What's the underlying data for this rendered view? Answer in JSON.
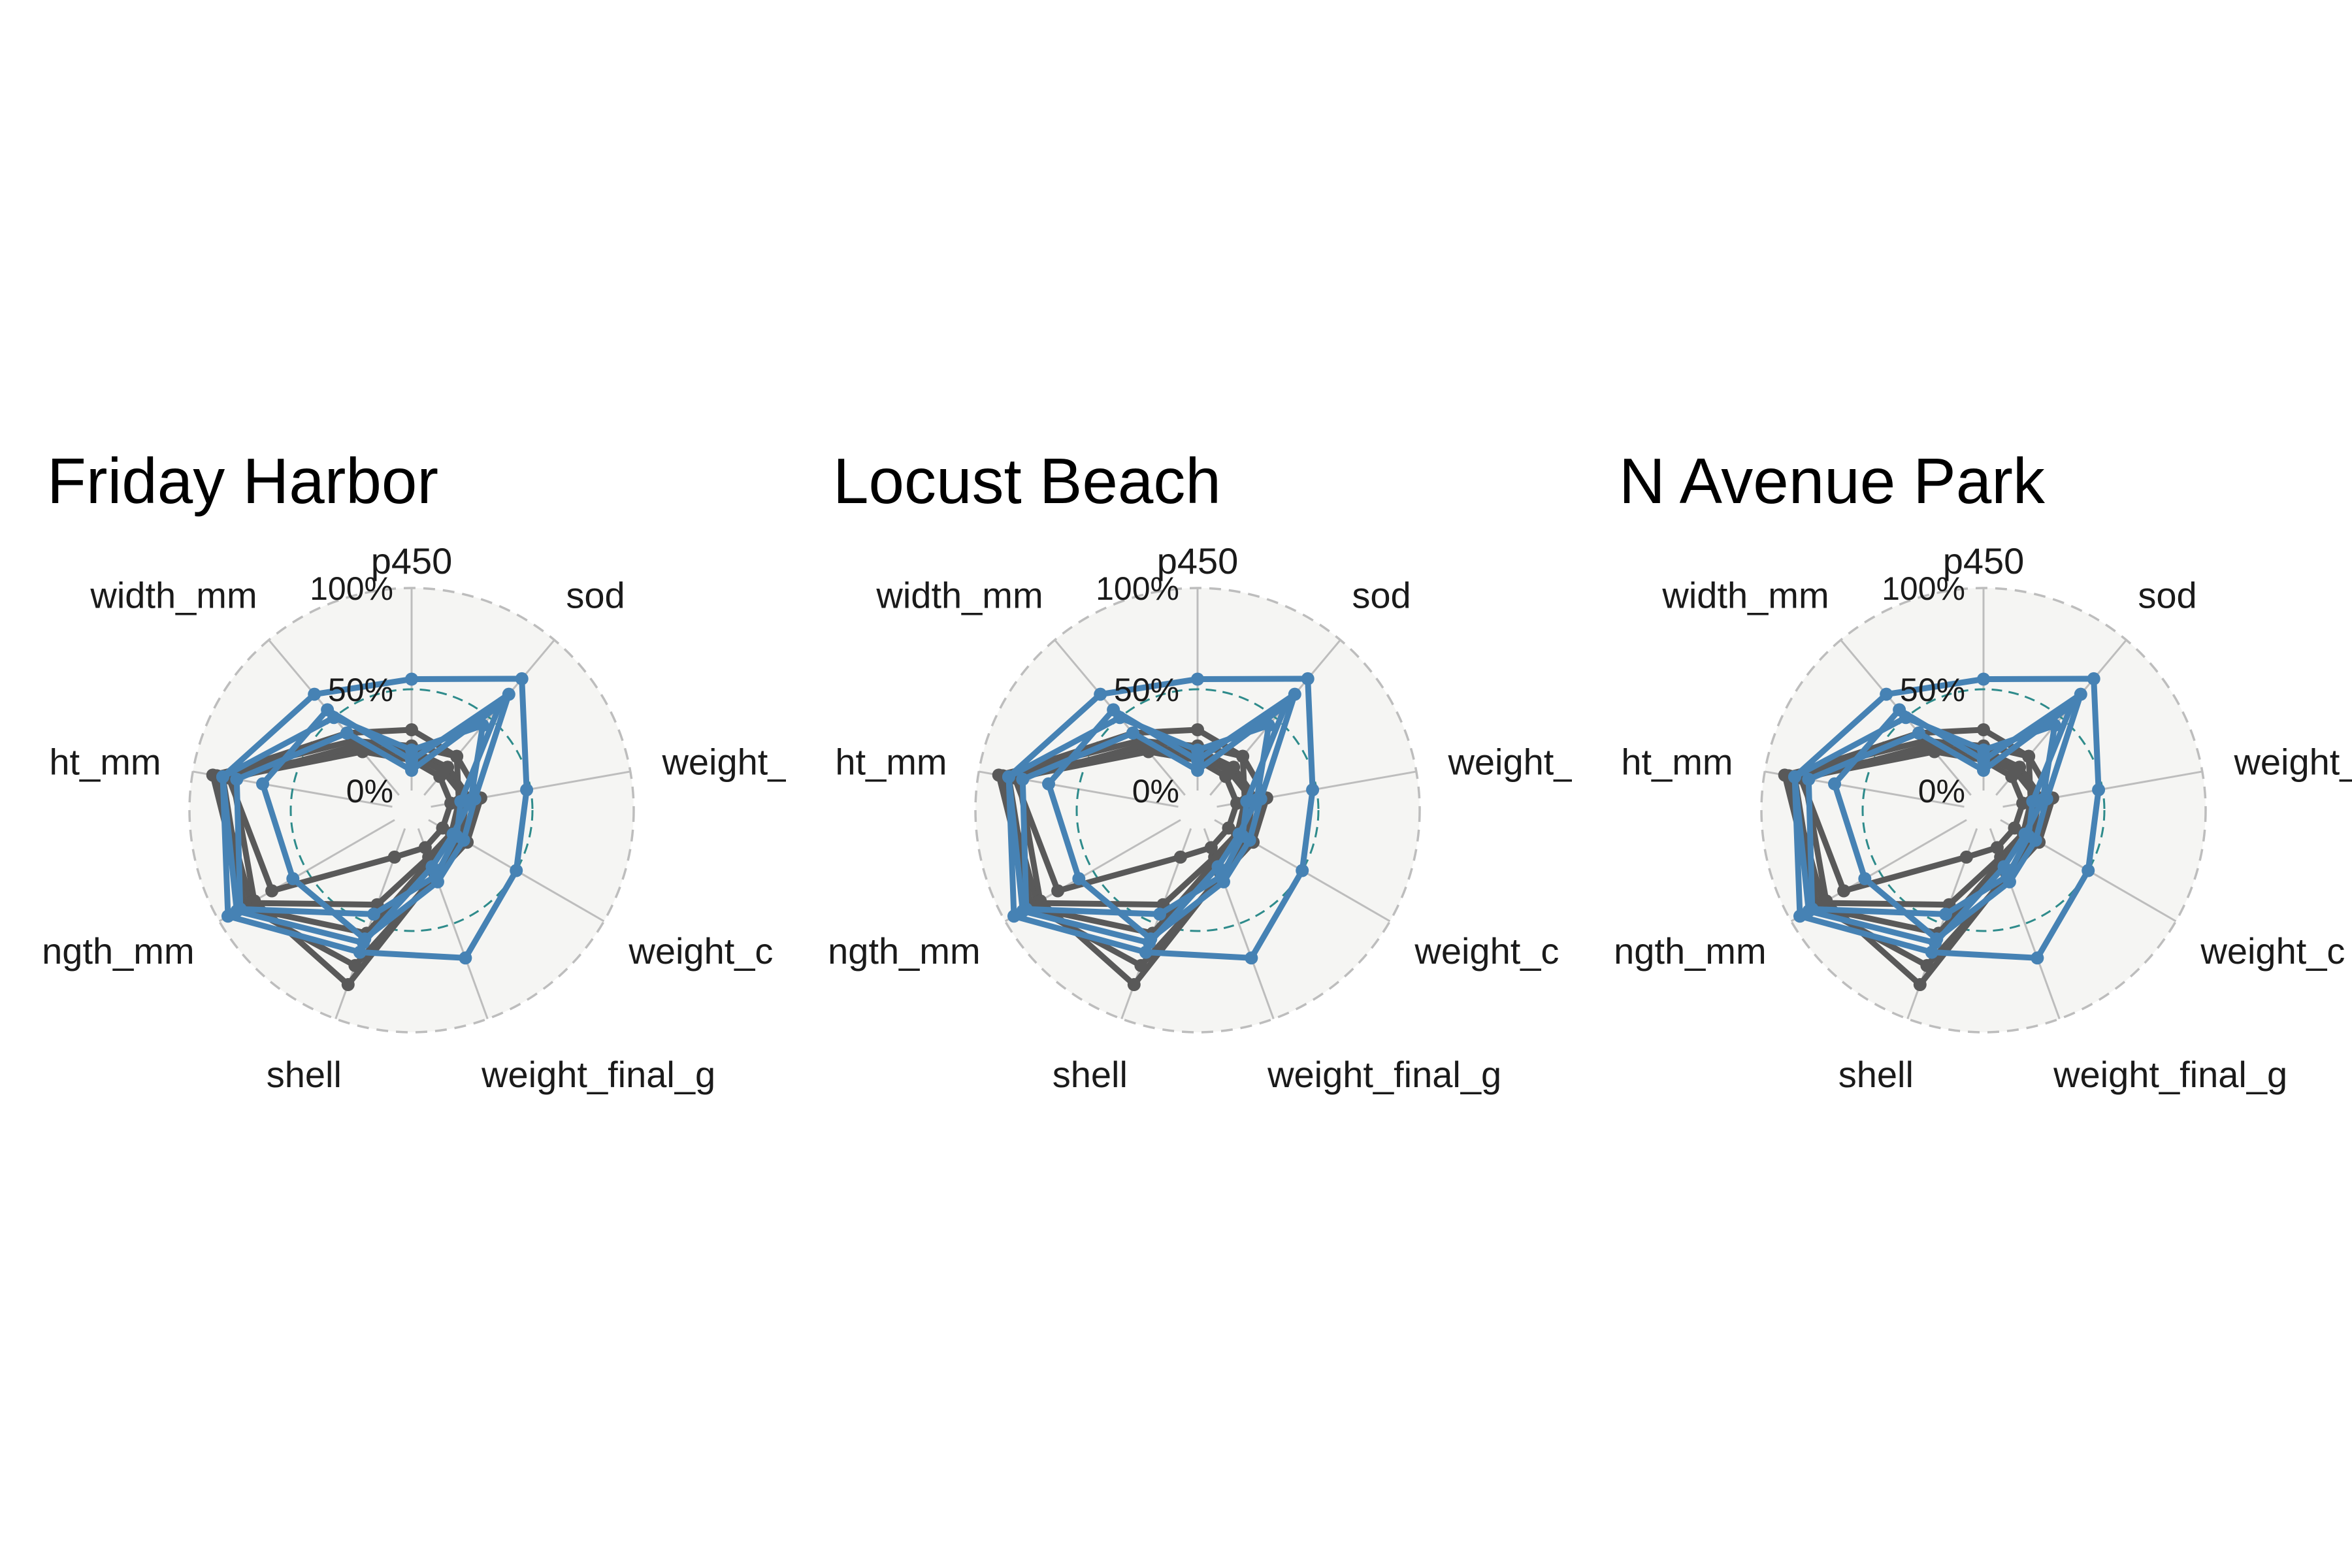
{
  "chart_data": [
    {
      "type": "radar",
      "title": "Friday Harbor",
      "axes": [
        "p450",
        "sod",
        "weight_initial_g",
        "weight_change_g",
        "weight_final_g",
        "shell",
        "length_mm",
        "height_mm",
        "width_mm"
      ],
      "axis_labels": [
        "p450",
        "sod",
        "weight_",
        "weight_c",
        "weight_final_g",
        "shell",
        "ngth_mm",
        "ht_mm",
        "width_mm"
      ],
      "radial_range": [
        0,
        100
      ],
      "radial_ticks": [
        "0%",
        "50%",
        "100%"
      ],
      "reference_ring": 50,
      "series": [
        {
          "group": "grey",
          "values": [
            30,
            25,
            14,
            13,
            15,
            40,
            82,
            88,
            40
          ]
        },
        {
          "group": "grey",
          "values": [
            20,
            18,
            20,
            14,
            17,
            55,
            86,
            85,
            30
          ]
        },
        {
          "group": "grey",
          "values": [
            18,
            15,
            18,
            18,
            24,
            82,
            80,
            80,
            32
          ]
        },
        {
          "group": "grey",
          "values": [
            22,
            25,
            25,
            22,
            25,
            72,
            85,
            90,
            35
          ]
        },
        {
          "group": "grey",
          "values": [
            15,
            12,
            10,
            8,
            10,
            15,
            70,
            82,
            28
          ]
        },
        {
          "group": "blue",
          "values": [
            55,
            75,
            48,
            50,
            68,
            65,
            95,
            85,
            65
          ]
        },
        {
          "group": "blue",
          "values": [
            15,
            65,
            22,
            20,
            28,
            58,
            58,
            65,
            55
          ]
        },
        {
          "group": "blue",
          "values": [
            10,
            58,
            15,
            16,
            25,
            45,
            88,
            78,
            40
          ]
        },
        {
          "group": "blue",
          "values": [
            20,
            45,
            20,
            14,
            20,
            60,
            90,
            85,
            50
          ]
        }
      ],
      "colors": {
        "grey": "#595959",
        "blue": "#4682b4",
        "reference": "#2e8b8b"
      }
    },
    {
      "type": "radar",
      "title": "Locust Beach",
      "axes": [
        "p450",
        "sod",
        "weight_initial_g",
        "weight_change_g",
        "weight_final_g",
        "shell",
        "length_mm",
        "height_mm",
        "width_mm"
      ],
      "axis_labels": [
        "p450",
        "sod",
        "weight_",
        "weight_c",
        "weight_final_g",
        "shell",
        "ngth_mm",
        "ht_mm",
        "width_mm"
      ],
      "radial_range": [
        0,
        100
      ],
      "radial_ticks": [
        "0%",
        "50%",
        "100%"
      ],
      "reference_ring": 50,
      "series": [
        {
          "group": "grey",
          "values": [
            30,
            25,
            14,
            13,
            15,
            40,
            82,
            88,
            40
          ]
        },
        {
          "group": "grey",
          "values": [
            20,
            18,
            20,
            14,
            17,
            55,
            86,
            85,
            30
          ]
        },
        {
          "group": "grey",
          "values": [
            18,
            15,
            18,
            18,
            24,
            82,
            80,
            80,
            32
          ]
        },
        {
          "group": "grey",
          "values": [
            22,
            25,
            25,
            22,
            25,
            72,
            85,
            90,
            35
          ]
        },
        {
          "group": "grey",
          "values": [
            15,
            12,
            10,
            8,
            10,
            15,
            70,
            82,
            28
          ]
        },
        {
          "group": "blue",
          "values": [
            55,
            75,
            48,
            50,
            68,
            65,
            95,
            85,
            65
          ]
        },
        {
          "group": "blue",
          "values": [
            15,
            65,
            22,
            20,
            28,
            58,
            58,
            65,
            55
          ]
        },
        {
          "group": "blue",
          "values": [
            10,
            58,
            15,
            16,
            25,
            45,
            88,
            78,
            40
          ]
        },
        {
          "group": "blue",
          "values": [
            20,
            45,
            20,
            14,
            20,
            60,
            90,
            85,
            50
          ]
        }
      ],
      "colors": {
        "grey": "#595959",
        "blue": "#4682b4",
        "reference": "#2e8b8b"
      }
    },
    {
      "type": "radar",
      "title": "N Avenue Park",
      "axes": [
        "p450",
        "sod",
        "weight_initial_g",
        "weight_change_g",
        "weight_final_g",
        "shell",
        "length_mm",
        "height_mm",
        "width_mm"
      ],
      "axis_labels": [
        "p450",
        "sod",
        "weight_",
        "weight_c",
        "weight_final_g",
        "shell",
        "ngth_mm",
        "ht_mm",
        "width_mm"
      ],
      "radial_range": [
        0,
        100
      ],
      "radial_ticks": [
        "0%",
        "50%",
        "100%"
      ],
      "reference_ring": 50,
      "series": [
        {
          "group": "grey",
          "values": [
            30,
            25,
            14,
            13,
            15,
            40,
            82,
            88,
            40
          ]
        },
        {
          "group": "grey",
          "values": [
            20,
            18,
            20,
            14,
            17,
            55,
            86,
            85,
            30
          ]
        },
        {
          "group": "grey",
          "values": [
            18,
            15,
            18,
            18,
            24,
            82,
            80,
            80,
            32
          ]
        },
        {
          "group": "grey",
          "values": [
            22,
            25,
            25,
            22,
            25,
            72,
            85,
            90,
            35
          ]
        },
        {
          "group": "grey",
          "values": [
            15,
            12,
            10,
            8,
            10,
            15,
            70,
            82,
            28
          ]
        },
        {
          "group": "blue",
          "values": [
            55,
            75,
            48,
            50,
            68,
            65,
            95,
            85,
            65
          ]
        },
        {
          "group": "blue",
          "values": [
            15,
            65,
            22,
            20,
            28,
            58,
            58,
            65,
            55
          ]
        },
        {
          "group": "blue",
          "values": [
            10,
            58,
            15,
            16,
            25,
            45,
            88,
            78,
            40
          ]
        },
        {
          "group": "blue",
          "values": [
            20,
            45,
            20,
            14,
            20,
            60,
            90,
            85,
            50
          ]
        }
      ],
      "colors": {
        "grey": "#595959",
        "blue": "#4682b4",
        "reference": "#2e8b8b"
      }
    }
  ]
}
